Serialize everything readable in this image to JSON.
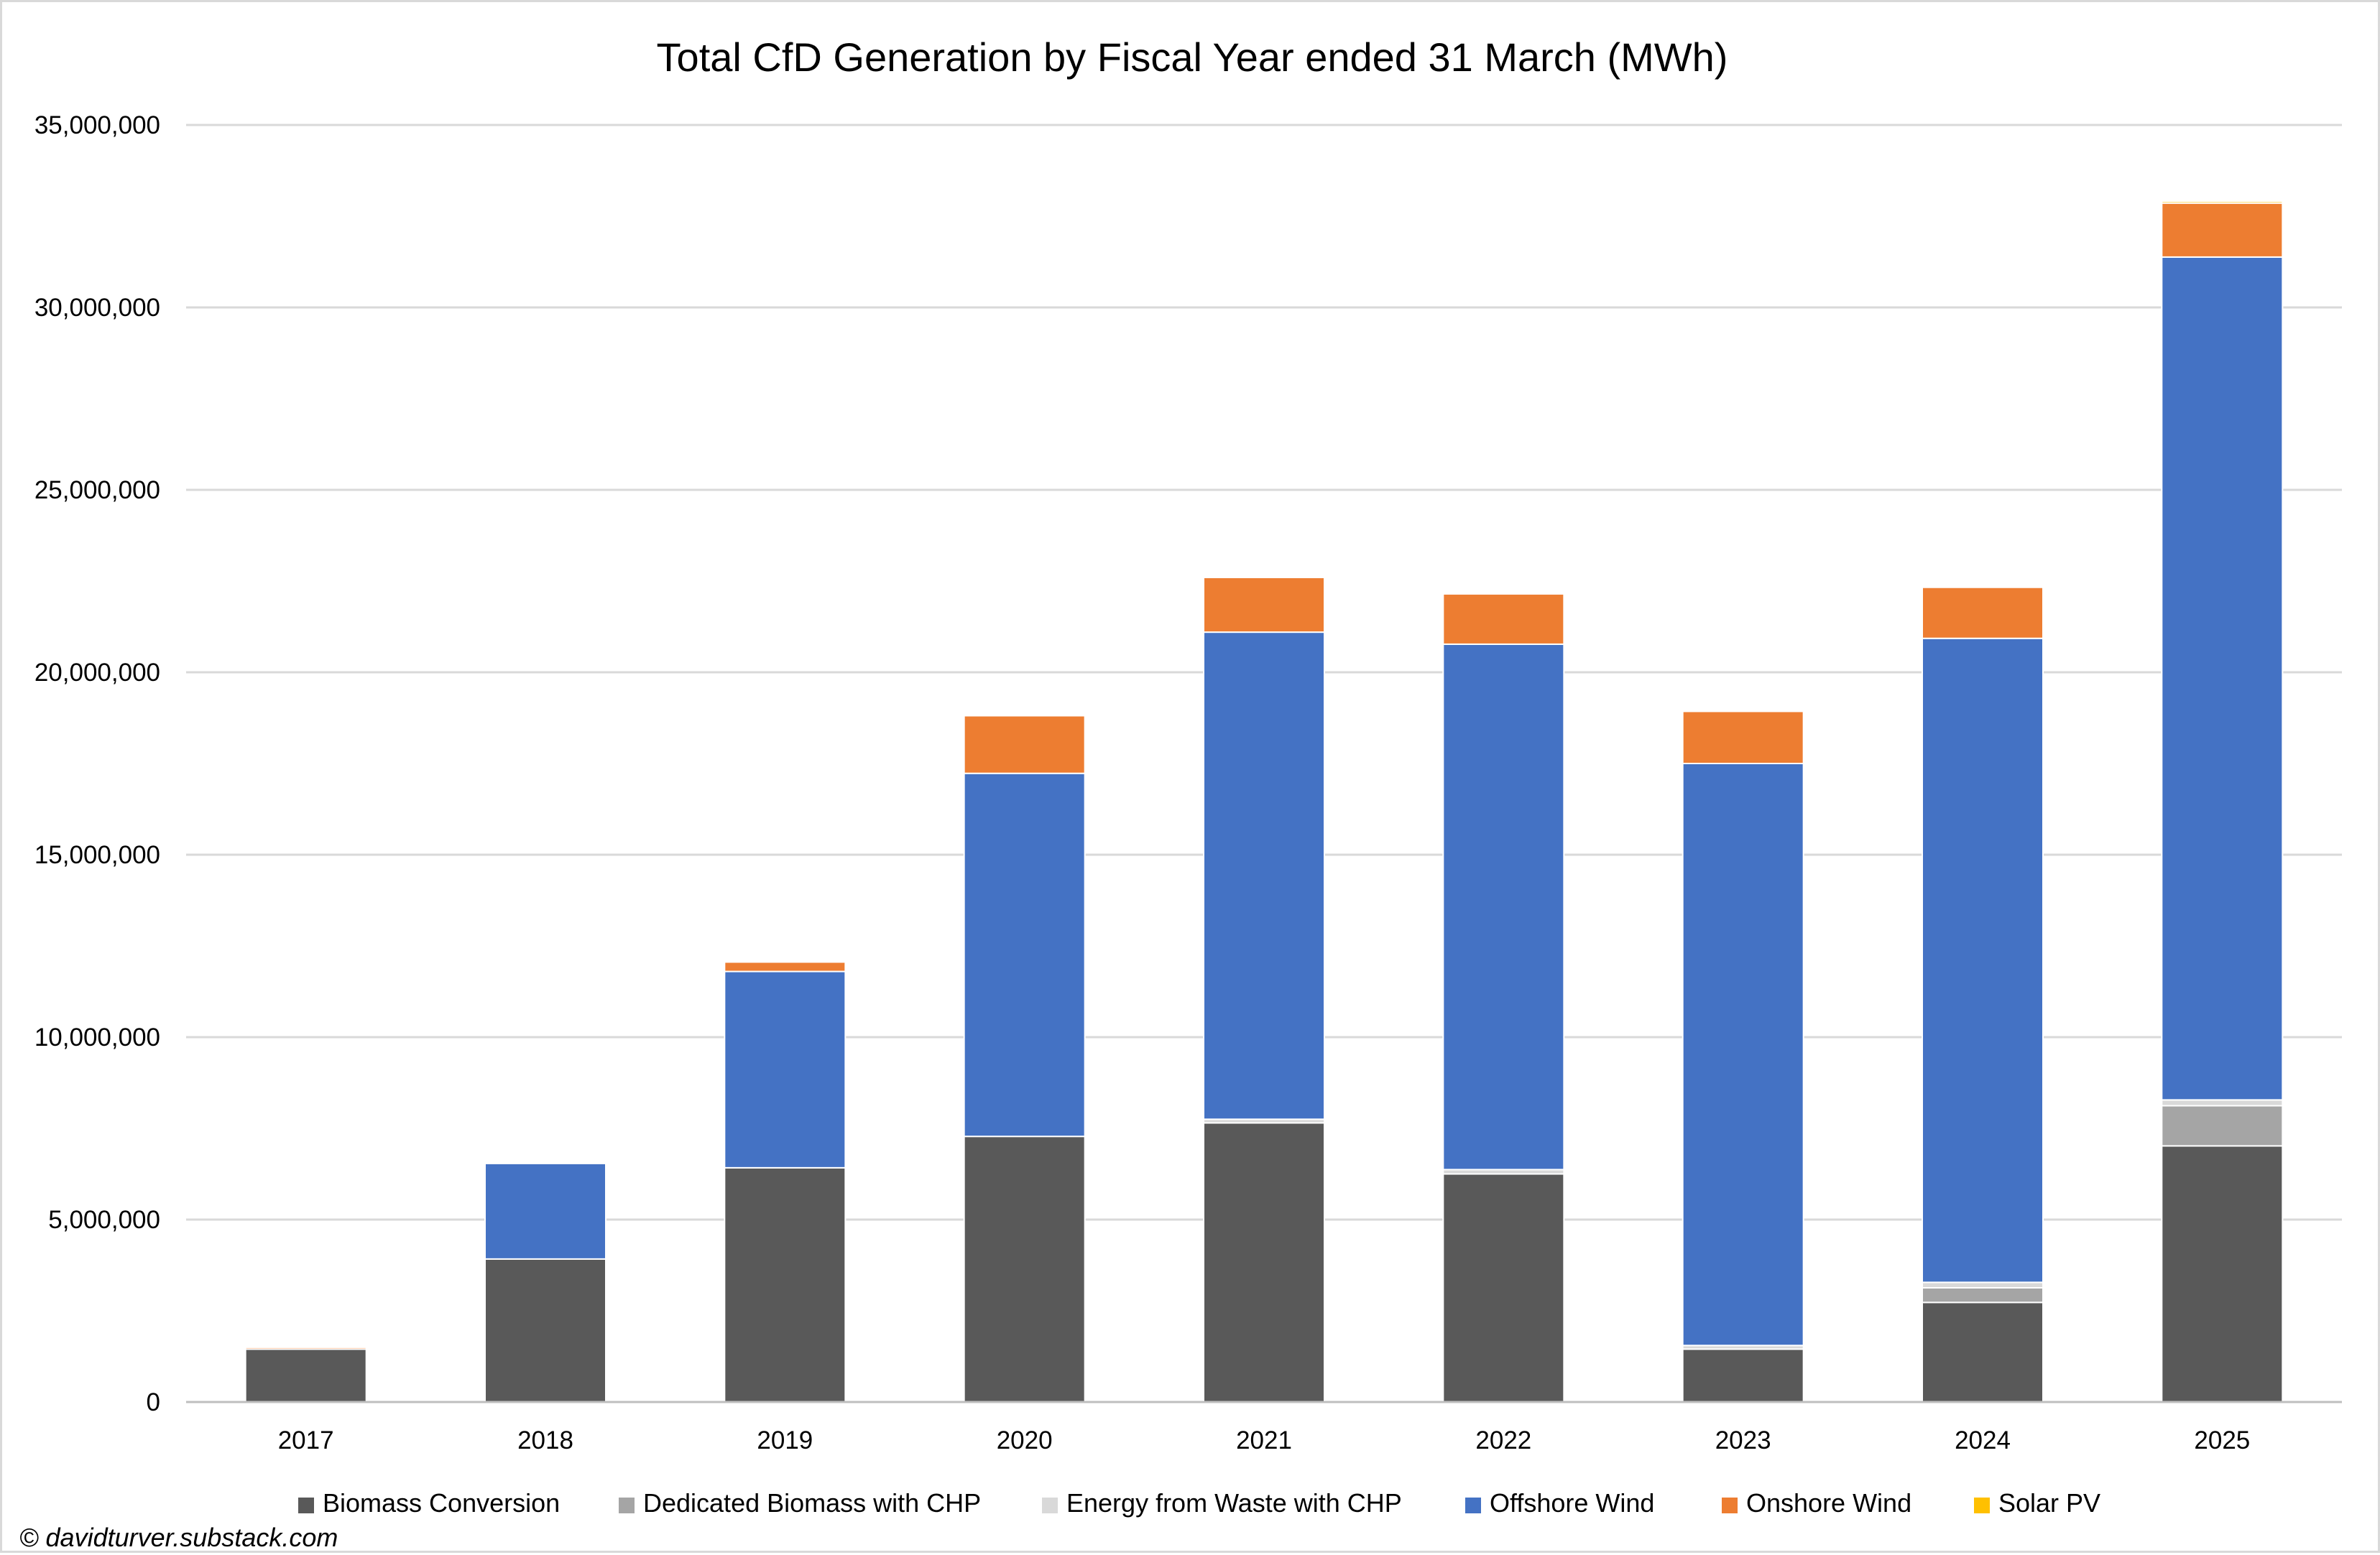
{
  "chart_data": {
    "type": "bar",
    "stacked": true,
    "title": "Total CfD Generation by Fiscal Year ended 31 March (MWh)",
    "xlabel": "",
    "ylabel": "",
    "ylim": [
      0,
      35000000
    ],
    "y_ticks": [
      0,
      5000000,
      10000000,
      15000000,
      20000000,
      25000000,
      30000000,
      35000000
    ],
    "y_tick_labels": [
      "0",
      "5,000,000",
      "10,000,000",
      "15,000,000",
      "20,000,000",
      "25,000,000",
      "30,000,000",
      "35,000,000"
    ],
    "grid": true,
    "legend_position": "bottom",
    "categories": [
      "2017",
      "2018",
      "2019",
      "2020",
      "2021",
      "2022",
      "2023",
      "2024",
      "2025"
    ],
    "series": [
      {
        "name": "Biomass Conversion",
        "color": "#595959",
        "values": [
          1450000,
          3920000,
          6420000,
          7280000,
          7650000,
          6250000,
          1450000,
          2730000,
          7020000
        ]
      },
      {
        "name": "Dedicated Biomass with CHP",
        "color": "#a5a5a5",
        "values": [
          0,
          0,
          0,
          0,
          0,
          0,
          0,
          400000,
          1100000
        ]
      },
      {
        "name": "Energy from Waste with CHP",
        "color": "#d9d9d9",
        "values": [
          0,
          0,
          0,
          0,
          100000,
          120000,
          100000,
          150000,
          160000
        ]
      },
      {
        "name": "Offshore Wind",
        "color": "#4472c4",
        "values": [
          0,
          2620000,
          5380000,
          9950000,
          13350000,
          14400000,
          15950000,
          17650000,
          23100000
        ]
      },
      {
        "name": "Onshore Wind",
        "color": "#ed7d31",
        "values": [
          50000,
          0,
          260000,
          1580000,
          1500000,
          1380000,
          1430000,
          1400000,
          1480000
        ]
      },
      {
        "name": "Solar PV",
        "color": "#ffc000",
        "values": [
          20000,
          30000,
          20000,
          20000,
          20000,
          20000,
          20000,
          20000,
          50000
        ]
      }
    ]
  },
  "credit": "© davidturver.substack.com",
  "colors": {
    "gridline": "#d9d9d9",
    "axis": "#bfbfbf",
    "background": "#ffffff"
  }
}
